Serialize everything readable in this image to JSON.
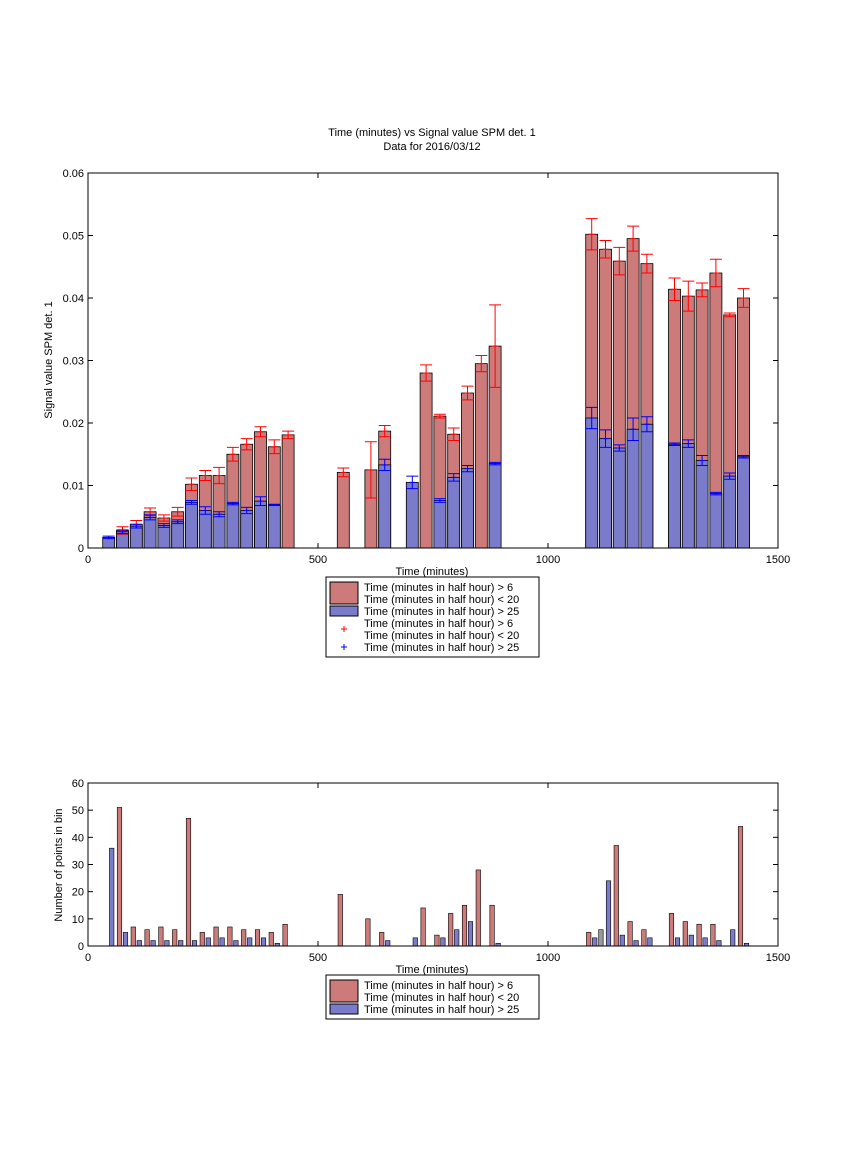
{
  "chart_data": [
    {
      "type": "bar",
      "title": "Time (minutes) vs Signal value SPM det. 1",
      "subtitle": "Data for 2016/03/12",
      "xlabel": "Time (minutes)",
      "ylabel": "Signal value SPM det. 1",
      "xlim": [
        0,
        1500
      ],
      "ylim": [
        0,
        0.06
      ],
      "xticks": [
        "0",
        "500",
        "1000",
        "1500"
      ],
      "yticks": [
        "0",
        "0.01",
        "0.02",
        "0.03",
        "0.04",
        "0.05",
        "0.06"
      ],
      "grid": false,
      "legend_position": "below",
      "legend": [
        {
          "label": [
            "Time (minutes in half hour) > 6",
            "Time (minutes in half hour) < 20"
          ],
          "kind": "patch",
          "color": "#cc7a7a"
        },
        {
          "label": [
            "Time (minutes in half hour) > 25"
          ],
          "kind": "patch",
          "color": "#7b7bcc"
        },
        {
          "label": [
            "Time (minutes in half hour) > 6",
            "Time (minutes in half hour) < 20"
          ],
          "kind": "plus",
          "color": "#ff0000"
        },
        {
          "label": [
            "Time (minutes in half hour) > 25"
          ],
          "kind": "plus",
          "color": "#0000ff"
        }
      ],
      "colors": {
        "red_bar": "#cc7a7a",
        "blue_bar": "#7b7bcc",
        "red_err": "#ff0000",
        "blue_err": "#0000ff"
      },
      "series": [
        {
          "name": "Time (minutes in half hour) > 6 / Time (minutes in half hour) < 20",
          "x": [
            75,
            105,
            135,
            165,
            195,
            225,
            255,
            285,
            315,
            345,
            375,
            405,
            435,
            555,
            615,
            645,
            735,
            765,
            795,
            825,
            855,
            885,
            1095,
            1125,
            1155,
            1185,
            1215,
            1275,
            1305,
            1335,
            1365,
            1395,
            1425
          ],
          "y": [
            0.0028,
            0.0038,
            0.0058,
            0.0048,
            0.0058,
            0.0102,
            0.0116,
            0.0116,
            0.015,
            0.0166,
            0.0186,
            0.0162,
            0.0181,
            0.0121,
            0.0125,
            0.0187,
            0.028,
            0.0211,
            0.0182,
            0.0248,
            0.0295,
            0.0323,
            0.0502,
            0.0478,
            0.0459,
            0.0495,
            0.0455,
            0.0414,
            0.0403,
            0.0413,
            0.044,
            0.0373,
            0.04
          ],
          "error": [
            0.0006,
            0.0006,
            0.0006,
            0.0005,
            0.0007,
            0.001,
            0.0008,
            0.0013,
            0.0011,
            0.0009,
            0.0008,
            0.0011,
            0.0006,
            0.0007,
            0.0045,
            0.0009,
            0.0013,
            0.0003,
            0.001,
            0.0011,
            0.0013,
            0.0066,
            0.0025,
            0.0014,
            0.0022,
            0.002,
            0.0015,
            0.0018,
            0.0024,
            0.0011,
            0.0022,
            0.0003,
            0.0015
          ]
        },
        {
          "name": "Time (minutes in half hour) > 25",
          "x": [
            45,
            75,
            105,
            135,
            165,
            195,
            225,
            255,
            285,
            315,
            345,
            375,
            405,
            645,
            705,
            765,
            795,
            825,
            885,
            1095,
            1125,
            1155,
            1185,
            1215,
            1275,
            1305,
            1335,
            1365,
            1395,
            1425
          ],
          "y": [
            0.0017,
            0.0026,
            0.0035,
            0.0049,
            0.0036,
            0.0042,
            0.0073,
            0.006,
            0.0054,
            0.0071,
            0.006,
            0.0075,
            0.0069,
            0.0133,
            0.0105,
            0.0076,
            0.0113,
            0.0127,
            0.0135,
            0.0208,
            0.0175,
            0.016,
            0.019,
            0.0198,
            0.0166,
            0.0167,
            0.014,
            0.0087,
            0.0115,
            0.0146
          ],
          "error": [
            0.0002,
            0.0003,
            0.0003,
            0.0004,
            0.0003,
            0.0003,
            0.0003,
            0.0006,
            0.0004,
            0.0002,
            0.0005,
            0.0007,
            0.0001,
            0.0009,
            0.001,
            0.0003,
            0.0006,
            0.0005,
            0.0002,
            0.0017,
            0.0014,
            0.0005,
            0.0018,
            0.0012,
            0.0002,
            0.0006,
            0.0008,
            0.0002,
            0.0005,
            0.0002
          ]
        }
      ]
    },
    {
      "type": "bar",
      "xlabel": "Time (minutes)",
      "ylabel": "Number of points in bin",
      "xlim": [
        0,
        1500
      ],
      "ylim": [
        0,
        60
      ],
      "xticks": [
        "0",
        "500",
        "1000",
        "1500"
      ],
      "yticks": [
        "0",
        "10",
        "20",
        "30",
        "40",
        "50",
        "60"
      ],
      "grid": false,
      "legend_position": "below",
      "legend": [
        {
          "label": [
            "Time (minutes in half hour) > 6",
            "Time (minutes in half hour) < 20"
          ],
          "kind": "patch",
          "color": "#cc7a7a"
        },
        {
          "label": [
            "Time (minutes in half hour) > 25"
          ],
          "kind": "patch",
          "color": "#7b7bcc"
        }
      ],
      "colors": {
        "red_bar": "#cc7a7a",
        "blue_bar": "#7b7bcc",
        "grey_bar": "#999999"
      },
      "series": [
        {
          "name": "Time (minutes in half hour) > 6 / Time (minutes in half hour) < 20",
          "x": [
            75,
            105,
            135,
            165,
            195,
            225,
            255,
            285,
            315,
            345,
            375,
            405,
            435,
            555,
            615,
            645,
            735,
            765,
            795,
            825,
            855,
            885,
            1095,
            1155,
            1185,
            1215,
            1275,
            1305,
            1335,
            1365,
            1425
          ],
          "y": [
            51,
            7,
            6,
            7,
            6,
            47,
            5,
            7,
            7,
            6,
            6,
            5,
            8,
            19,
            10,
            5,
            14,
            4,
            12,
            15,
            28,
            15,
            5,
            37,
            9,
            6,
            12,
            9,
            8,
            8,
            44
          ]
        },
        {
          "name": "Time (minutes in half hour) > 25",
          "x": [
            45,
            75,
            105,
            135,
            165,
            195,
            225,
            255,
            285,
            315,
            345,
            375,
            405,
            645,
            705,
            765,
            795,
            825,
            885,
            1095,
            1125,
            1155,
            1185,
            1215,
            1275,
            1305,
            1335,
            1365,
            1395,
            1425
          ],
          "y": [
            36,
            5,
            2,
            2,
            2,
            2,
            2,
            3,
            3,
            2,
            3,
            3,
            1,
            2,
            3,
            3,
            6,
            9,
            1,
            3,
            24,
            4,
            2,
            3,
            3,
            4,
            3,
            2,
            6,
            1
          ]
        },
        {
          "name": "",
          "x": [
            1115
          ],
          "y": [
            6
          ]
        }
      ]
    }
  ]
}
